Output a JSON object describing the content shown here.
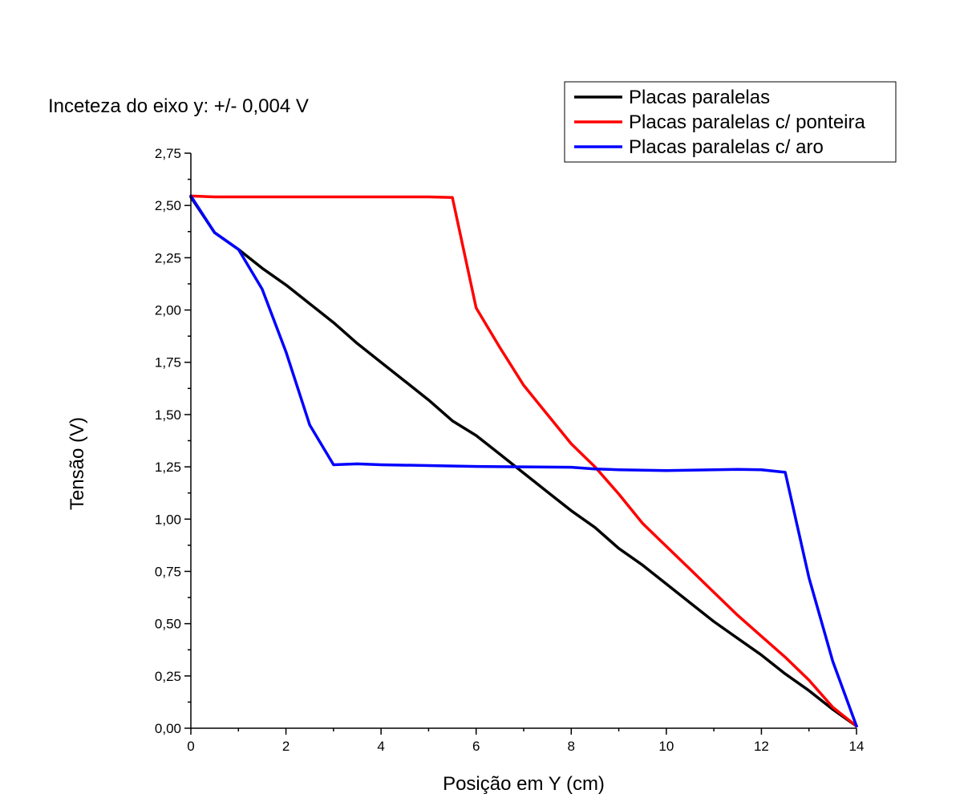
{
  "chart_data": {
    "type": "line",
    "annotation": "Inceteza do eixo y: +/- 0,004 V",
    "xlabel": "Posição em Y (cm)",
    "ylabel": "Tensão (V)",
    "xlim": [
      0,
      14
    ],
    "ylim": [
      0,
      2.75
    ],
    "x_ticks": [
      0,
      2,
      4,
      6,
      8,
      10,
      12,
      14
    ],
    "x_tick_labels": [
      "0",
      "2",
      "4",
      "6",
      "8",
      "10",
      "12",
      "14"
    ],
    "y_ticks": [
      0,
      0.25,
      0.5,
      0.75,
      1.0,
      1.25,
      1.5,
      1.75,
      2.0,
      2.25,
      2.5,
      2.75
    ],
    "y_tick_labels": [
      "0,00",
      "0,25",
      "0,50",
      "0,75",
      "1,00",
      "1,25",
      "1,50",
      "1,75",
      "2,00",
      "2,25",
      "2,50",
      "2,75"
    ],
    "grid": false,
    "legend_position": "top-right",
    "series": [
      {
        "name": "Placas paralelas",
        "color": "#000000",
        "points": [
          [
            0,
            2.54
          ],
          [
            0.5,
            2.37
          ],
          [
            1,
            2.29
          ],
          [
            1.5,
            2.2
          ],
          [
            2,
            2.12
          ],
          [
            2.5,
            2.03
          ],
          [
            3,
            1.94
          ],
          [
            3.5,
            1.84
          ],
          [
            4,
            1.75
          ],
          [
            4.5,
            1.66
          ],
          [
            5,
            1.57
          ],
          [
            5.5,
            1.47
          ],
          [
            6,
            1.4
          ],
          [
            6.5,
            1.31
          ],
          [
            7,
            1.22
          ],
          [
            7.5,
            1.13
          ],
          [
            8,
            1.04
          ],
          [
            8.5,
            0.96
          ],
          [
            9,
            0.86
          ],
          [
            9.5,
            0.78
          ],
          [
            10,
            0.69
          ],
          [
            10.5,
            0.6
          ],
          [
            11,
            0.51
          ],
          [
            11.5,
            0.43
          ],
          [
            12,
            0.35
          ],
          [
            12.5,
            0.26
          ],
          [
            13,
            0.18
          ],
          [
            13.5,
            0.09
          ],
          [
            14,
            0.01
          ]
        ]
      },
      {
        "name": "Placas paralelas c/ ponteira",
        "color": "#ff0000",
        "points": [
          [
            0,
            2.545
          ],
          [
            0.5,
            2.541
          ],
          [
            1,
            2.541
          ],
          [
            2,
            2.541
          ],
          [
            3,
            2.541
          ],
          [
            4,
            2.541
          ],
          [
            5,
            2.541
          ],
          [
            5.5,
            2.538
          ],
          [
            6,
            2.01
          ],
          [
            6.5,
            1.82
          ],
          [
            7,
            1.64
          ],
          [
            7.5,
            1.5
          ],
          [
            8,
            1.36
          ],
          [
            8.5,
            1.25
          ],
          [
            9,
            1.12
          ],
          [
            9.5,
            0.98
          ],
          [
            10,
            0.87
          ],
          [
            10.5,
            0.76
          ],
          [
            11,
            0.65
          ],
          [
            11.5,
            0.54
          ],
          [
            12,
            0.44
          ],
          [
            12.5,
            0.34
          ],
          [
            13,
            0.23
          ],
          [
            13.5,
            0.1
          ],
          [
            14,
            0.01
          ]
        ]
      },
      {
        "name": "Placas paralelas c/ aro",
        "color": "#0000ff",
        "points": [
          [
            0,
            2.545
          ],
          [
            0.5,
            2.37
          ],
          [
            1,
            2.29
          ],
          [
            1.5,
            2.1
          ],
          [
            2,
            1.8
          ],
          [
            2.5,
            1.45
          ],
          [
            3,
            1.26
          ],
          [
            3.5,
            1.264
          ],
          [
            4,
            1.26
          ],
          [
            5,
            1.256
          ],
          [
            6,
            1.252
          ],
          [
            7,
            1.25
          ],
          [
            8,
            1.248
          ],
          [
            8.5,
            1.24
          ],
          [
            9,
            1.236
          ],
          [
            10,
            1.232
          ],
          [
            11,
            1.236
          ],
          [
            11.5,
            1.238
          ],
          [
            12,
            1.236
          ],
          [
            12.5,
            1.224
          ],
          [
            13,
            0.72
          ],
          [
            13.5,
            0.32
          ],
          [
            14,
            0.01
          ]
        ]
      }
    ]
  }
}
